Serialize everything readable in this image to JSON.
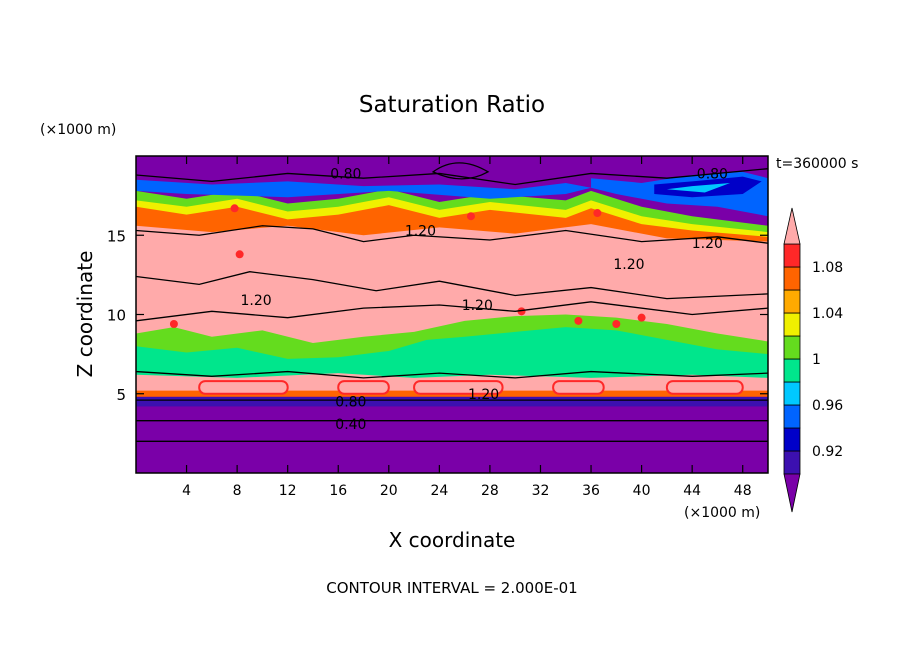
{
  "chart_data": {
    "type": "heatmap",
    "title": "Saturation Ratio",
    "xlabel": "X coordinate",
    "ylabel": "Z coordinate",
    "x_unit": "(×1000 m)",
    "y_unit": "(×1000 m)",
    "xlim": [
      0,
      50
    ],
    "ylim": [
      0,
      20
    ],
    "x_ticks": [
      4,
      8,
      12,
      16,
      20,
      24,
      28,
      32,
      36,
      40,
      44,
      48
    ],
    "y_ticks": [
      5,
      10,
      15
    ],
    "time_label": "t=360000 s",
    "footer": "CONTOUR INTERVAL = 2.000E-01",
    "colorbar": {
      "levels": [
        0.9,
        0.92,
        0.94,
        0.96,
        0.98,
        1.0,
        1.02,
        1.04,
        1.06,
        1.08,
        1.1
      ],
      "tick_labels": [
        "0.92",
        "0.96",
        "1",
        "1.04",
        "1.08"
      ],
      "tick_values": [
        0.92,
        0.96,
        1.0,
        1.04,
        1.08
      ],
      "colors": [
        "#7a00a8",
        "#3c10b0",
        "#0000c8",
        "#0064ff",
        "#00c8ff",
        "#00e68c",
        "#64dc1e",
        "#f0f000",
        "#ffaa00",
        "#ff6400",
        "#ff2828",
        "#ffaaaa"
      ]
    },
    "contour_labels": [
      {
        "text": "0.80",
        "x": 16.6,
        "z": 18.9
      },
      {
        "text": "0.80",
        "x": 45.6,
        "z": 18.9
      },
      {
        "text": "1.20",
        "x": 22.5,
        "z": 15.3
      },
      {
        "text": "1.20",
        "x": 45.2,
        "z": 14.5
      },
      {
        "text": "1.20",
        "x": 39.0,
        "z": 13.2
      },
      {
        "text": "1.20",
        "x": 9.5,
        "z": 10.9
      },
      {
        "text": "1.20",
        "x": 27.0,
        "z": 10.6
      },
      {
        "text": "1.20",
        "x": 27.5,
        "z": 5.0
      },
      {
        "text": "0.80",
        "x": 17.0,
        "z": 4.5
      },
      {
        "text": "0.40",
        "x": 17.0,
        "z": 3.1
      }
    ]
  }
}
